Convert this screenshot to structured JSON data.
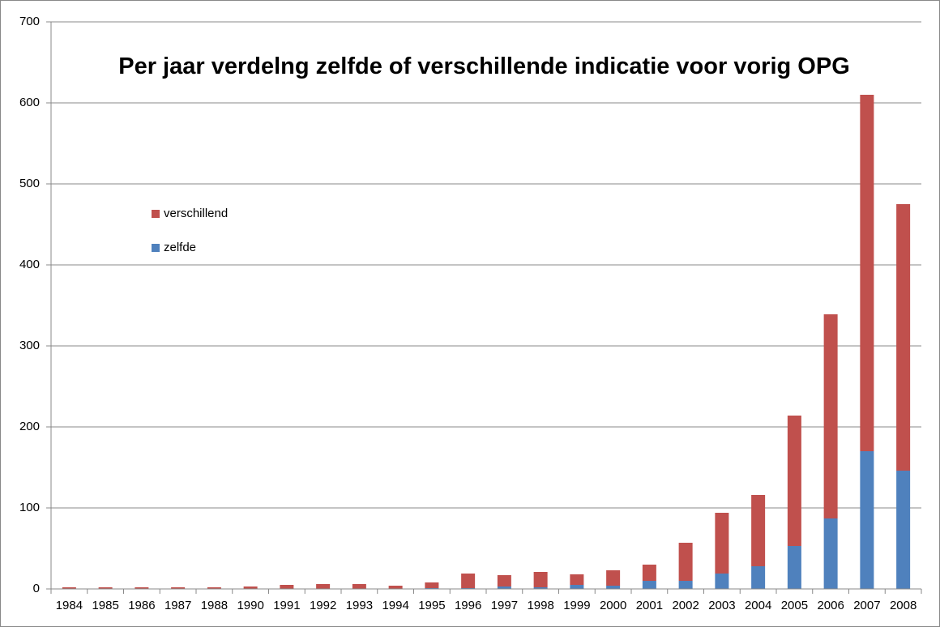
{
  "chart_data": {
    "type": "stacked_bar",
    "title": "Per jaar verdelng zelfde of verschillende indicatie voor vorig OPG",
    "categories": [
      "1984",
      "1985",
      "1986",
      "1987",
      "1988",
      "1990",
      "1991",
      "1992",
      "1993",
      "1994",
      "1995",
      "1996",
      "1997",
      "1998",
      "1999",
      "2000",
      "2001",
      "2002",
      "2003",
      "2004",
      "2005",
      "2006",
      "2007",
      "2008"
    ],
    "series": [
      {
        "name": "zelfde",
        "color": "#4f81bd",
        "values": [
          0,
          0,
          0,
          0,
          0,
          0,
          0,
          0,
          0,
          0,
          1,
          1,
          3,
          2,
          5,
          4,
          10,
          10,
          19,
          28,
          53,
          87,
          170,
          146
        ]
      },
      {
        "name": "verschillend",
        "color": "#c0504d",
        "values": [
          2,
          2,
          2,
          2,
          2,
          3,
          5,
          6,
          6,
          4,
          7,
          18,
          14,
          19,
          13,
          19,
          20,
          47,
          75,
          88,
          161,
          252,
          440,
          329
        ]
      }
    ],
    "ylim": [
      0,
      700
    ],
    "yticks": [
      0,
      100,
      200,
      300,
      400,
      500,
      600,
      700
    ],
    "grid": true
  }
}
